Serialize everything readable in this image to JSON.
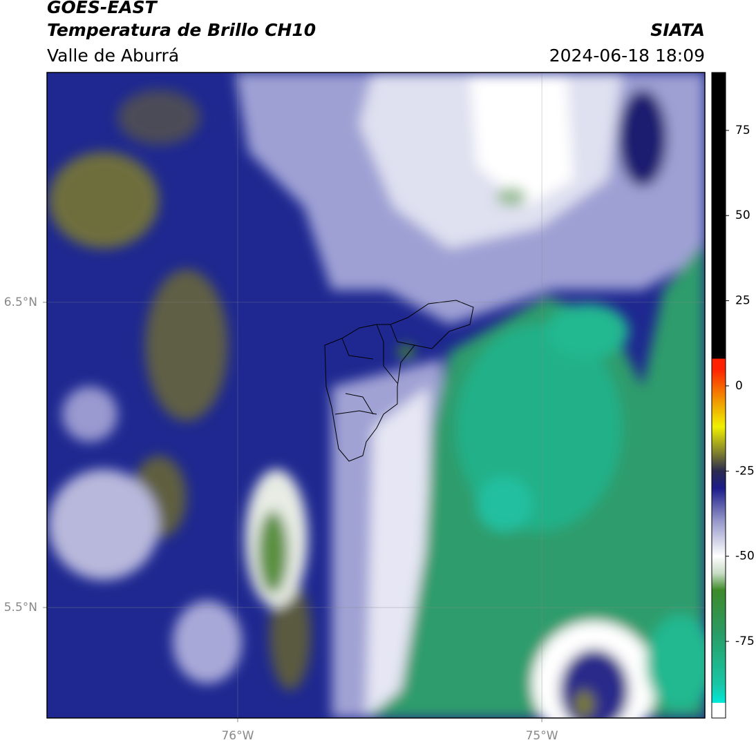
{
  "header": {
    "title": "GOES-EAST",
    "subtitle": "Temperatura de Brillo CH10",
    "region": "Valle de Aburrá",
    "source": "SIATA",
    "datetime": "2024-06-18 18:09"
  },
  "map": {
    "xlim": [
      -76.627,
      -74.464
    ],
    "ylim": [
      5.138,
      7.253
    ],
    "xticks": [
      {
        "value": -76,
        "label": "76°W"
      },
      {
        "value": -75,
        "label": "75°W"
      }
    ],
    "yticks": [
      {
        "value": 6.5,
        "label": "6.5°N"
      },
      {
        "value": 5.5,
        "label": "5.5°N"
      }
    ],
    "grid": true
  },
  "colorbar": {
    "lim": [
      -97.5,
      92
    ],
    "ticks": [
      75,
      50,
      25,
      0,
      -25,
      -50,
      -75
    ],
    "stops": [
      {
        "value": -97.5,
        "color": "#ffffff"
      },
      {
        "value": -93,
        "color": "#ffffff"
      },
      {
        "value": -93,
        "color": "#00e8d8"
      },
      {
        "value": -88,
        "color": "#18c8a8"
      },
      {
        "value": -72,
        "color": "#2a9a62"
      },
      {
        "value": -60,
        "color": "#3d8a2a"
      },
      {
        "value": -55,
        "color": "#c8dcc4"
      },
      {
        "value": -50,
        "color": "#ffffff"
      },
      {
        "value": -40,
        "color": "#9a9ccc"
      },
      {
        "value": -30,
        "color": "#1c1c8a"
      },
      {
        "value": -25,
        "color": "#2a2a50"
      },
      {
        "value": -20,
        "color": "#7a7a30"
      },
      {
        "value": -12,
        "color": "#f0f000"
      },
      {
        "value": -5,
        "color": "#f0a000"
      },
      {
        "value": 5,
        "color": "#ff2000"
      },
      {
        "value": 8,
        "color": "#ff2000"
      },
      {
        "value": 8,
        "color": "#000000"
      },
      {
        "value": 92,
        "color": "#000000"
      }
    ]
  }
}
